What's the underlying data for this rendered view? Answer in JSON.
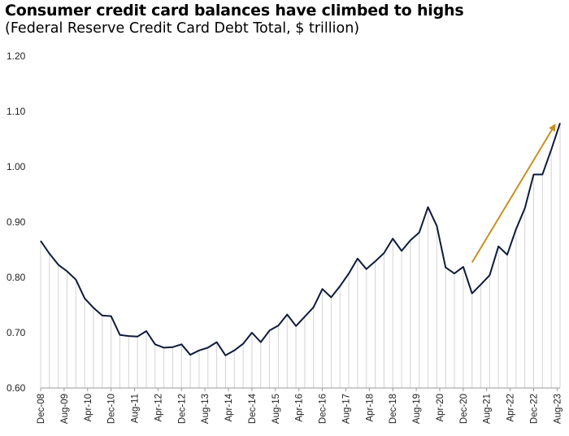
{
  "chart_data": {
    "type": "line",
    "title": "Consumer credit card balances have climbed to highs",
    "subtitle": "(Federal Reserve Credit Card Debt Total, $ trillion)",
    "ylim": [
      0.6,
      1.2
    ],
    "yticks": [
      "0.60",
      "0.70",
      "0.80",
      "0.90",
      "1.00",
      "1.10",
      "1.20"
    ],
    "xticks": [
      "Dec-08",
      "Aug-09",
      "Apr-10",
      "Dec-10",
      "Aug-11",
      "Apr-12",
      "Dec-12",
      "Aug-13",
      "Apr-14",
      "Dec-14",
      "Aug-15",
      "Apr-16",
      "Dec-16",
      "Aug-17",
      "Apr-18",
      "Dec-18",
      "Aug-19",
      "Apr-20",
      "Dec-20",
      "Aug-21",
      "Apr-22",
      "Dec-22",
      "Aug-23"
    ],
    "series": [
      {
        "values": [
          0.866,
          0.843,
          0.823,
          0.811,
          0.796,
          0.762,
          0.745,
          0.731,
          0.73,
          0.696,
          0.694,
          0.693,
          0.703,
          0.679,
          0.673,
          0.674,
          0.679,
          0.66,
          0.668,
          0.673,
          0.683,
          0.659,
          0.668,
          0.68,
          0.7,
          0.683,
          0.704,
          0.713,
          0.733,
          0.712,
          0.729,
          0.746,
          0.779,
          0.764,
          0.784,
          0.807,
          0.834,
          0.815,
          0.829,
          0.844,
          0.87,
          0.848,
          0.867,
          0.881,
          0.927,
          0.893,
          0.818,
          0.807,
          0.819,
          0.771,
          0.787,
          0.804,
          0.856,
          0.841,
          0.887,
          0.925,
          0.986,
          0.986,
          1.031,
          1.079
        ]
      }
    ],
    "annotation": {
      "type": "arrow",
      "from_index": 49,
      "from_value": 0.827,
      "to_index": 58.5,
      "to_value": 1.078,
      "color": "#C8901E"
    },
    "line_color": "#0E1B3C",
    "drop_line_color": "#D4D4D4",
    "grid": false,
    "legend": "none"
  }
}
